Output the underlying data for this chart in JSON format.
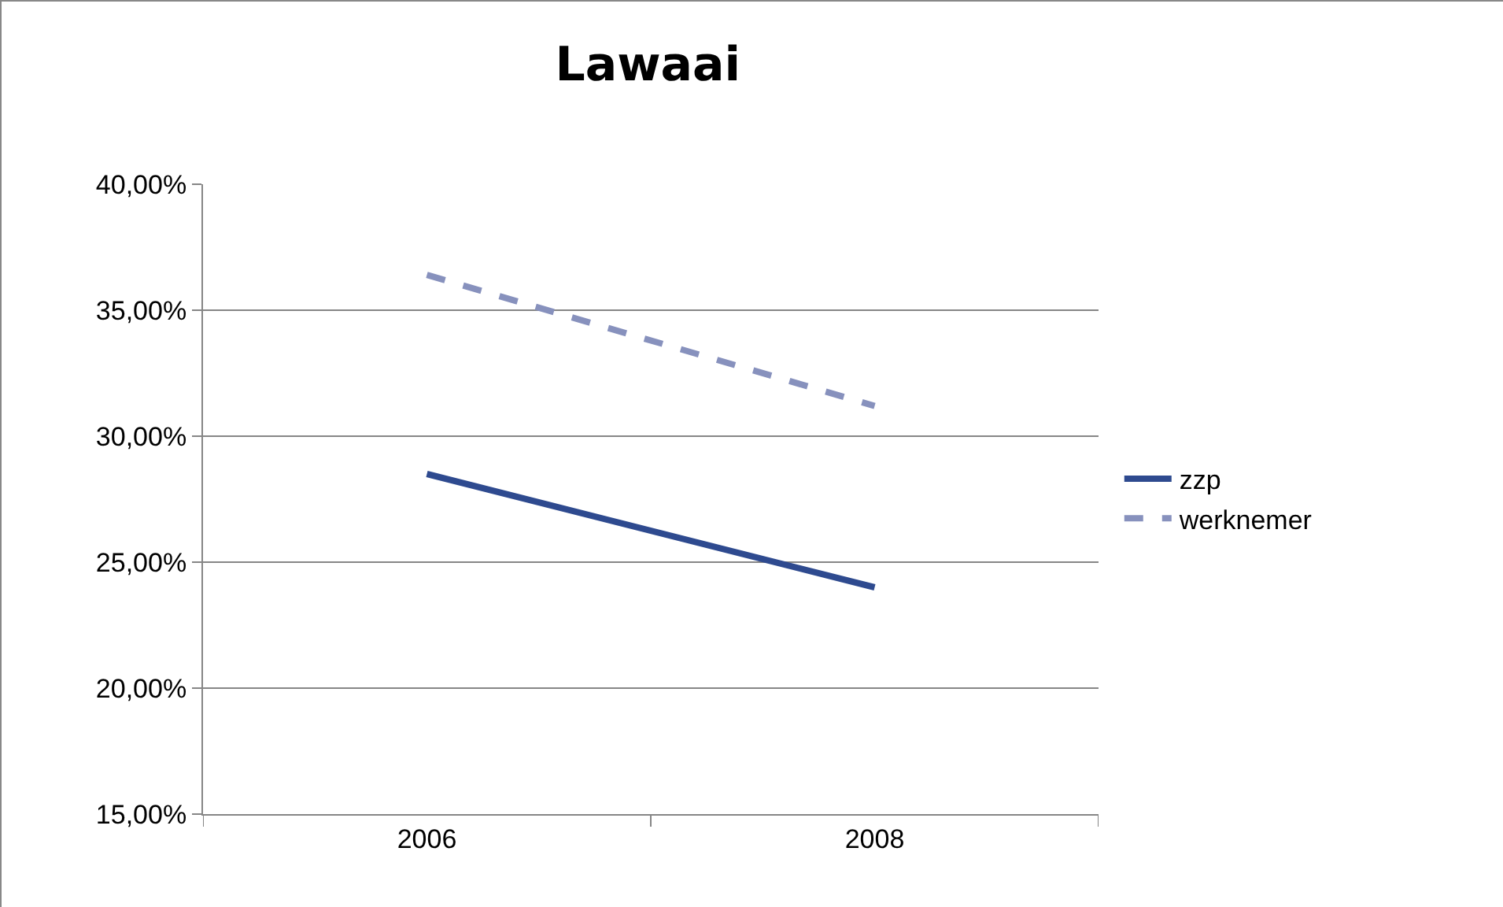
{
  "chart_data": {
    "type": "line",
    "title": "Lawaai",
    "categories": [
      "2006",
      "2008"
    ],
    "series": [
      {
        "name": "zzp",
        "color": "#2e4a8f",
        "values": [
          28.5,
          24.0
        ],
        "line_style": "solid"
      },
      {
        "name": "werknemer",
        "color": "#8791bd",
        "values": [
          36.4,
          31.2
        ],
        "line_style": "dashed"
      }
    ],
    "ylim": [
      15,
      40
    ],
    "yticks": [
      {
        "value": 15,
        "label": "15,00%"
      },
      {
        "value": 20,
        "label": "20,00%"
      },
      {
        "value": 25,
        "label": "25,00%"
      },
      {
        "value": 30,
        "label": "30,00%"
      },
      {
        "value": 35,
        "label": "35,00%"
      },
      {
        "value": 40,
        "label": "40,00%"
      }
    ],
    "grid": "y",
    "legend": "right",
    "marker": "none"
  }
}
